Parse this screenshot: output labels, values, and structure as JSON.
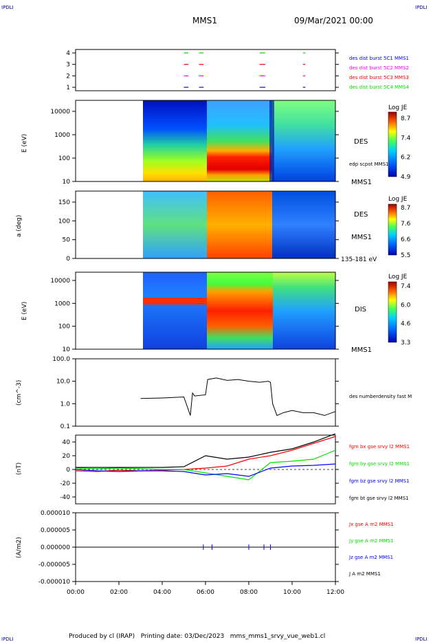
{
  "header": {
    "corner_tl": "IPDLI",
    "corner_tr": "IPDLI",
    "corner_bl": "IPDLI",
    "corner_br": "IPDLI",
    "mission": "MMS1",
    "datetime": "09/Mar/2021 00:00"
  },
  "footer": {
    "text": "Produced by cl (IRAP)   Printing date: 03/Dec/2023   mms_mms1_srvy_vue_web1.cl"
  },
  "colors": {
    "red": "#ff0000",
    "green": "#00e000",
    "blue": "#0000ff",
    "magenta": "#ff00ff",
    "black": "#000000"
  },
  "chart_data": [
    {
      "type": "scatter",
      "name": "burst",
      "yticks": [
        "4",
        "3",
        "2",
        "1"
      ],
      "xlim": [
        "00:00",
        "12:00"
      ],
      "series": [
        {
          "name": "des dist burst 5C1 MMS1",
          "color": "#0000ff",
          "y": 1
        },
        {
          "name": "des dist burst 5C2 MMS2",
          "color": "#ff00ff",
          "y": 2
        },
        {
          "name": "des dist burst 5C3 MMS3",
          "color": "#ff0000",
          "y": 3
        },
        {
          "name": "des dist burst 5C4 MMS4",
          "color": "#00e000",
          "y": 4
        }
      ],
      "intervals_hours": [
        [
          5.0,
          5.15
        ],
        [
          5.7,
          5.85
        ],
        [
          8.5,
          8.7
        ],
        [
          10.5,
          10.55
        ]
      ]
    },
    {
      "type": "heatmap",
      "name": "des-energy",
      "ylabel": "E (eV)",
      "yticks": [
        "10000",
        "1000",
        "100",
        "10"
      ],
      "label": "DES",
      "label2": "edp scpot MMS1",
      "label3": "MMS1",
      "colorbar": {
        "title": "Log JE",
        "ticks": [
          "8.7",
          "7.4",
          "6.2",
          "4.9"
        ]
      }
    },
    {
      "type": "heatmap",
      "name": "des-pitch",
      "ylabel": "a (deg)",
      "yticks": [
        "150",
        "100",
        "50",
        "0"
      ],
      "label": "DES",
      "label2": "MMS1",
      "label3": "135-181 eV",
      "colorbar": {
        "title": "Log JE",
        "ticks": [
          "8.7",
          "7.6",
          "6.6",
          "5.5"
        ]
      }
    },
    {
      "type": "heatmap",
      "name": "dis-energy",
      "ylabel": "E (eV)",
      "yticks": [
        "10000",
        "1000",
        "100",
        "10"
      ],
      "label": "DIS",
      "label2": "MMS1",
      "colorbar": {
        "title": "Log JE",
        "ticks": [
          "7.4",
          "6.0",
          "4.6",
          "3.3"
        ]
      }
    },
    {
      "type": "line",
      "name": "density",
      "ylabel": "(cm^-3)",
      "yticks": [
        "100.0",
        "10.0",
        "1.0",
        "0.1"
      ],
      "ylim": [
        0.1,
        100
      ],
      "log": true,
      "series": [
        {
          "name": "des numberdensity fast M",
          "color": "#000000",
          "x": [
            3.0,
            4.0,
            5.0,
            5.3,
            5.4,
            5.5,
            6.0,
            6.1,
            6.5,
            7.0,
            7.5,
            8.0,
            8.5,
            8.9,
            9.0,
            9.1,
            9.3,
            9.6,
            10.0,
            10.5,
            11.0,
            11.5,
            12.0
          ],
          "y": [
            1.7,
            1.8,
            2.0,
            0.3,
            3.0,
            2.2,
            2.5,
            12.0,
            14.0,
            11.0,
            12.0,
            10.0,
            9.0,
            10.0,
            9.0,
            1.0,
            0.3,
            0.4,
            0.5,
            0.4,
            0.4,
            0.3,
            0.45
          ]
        }
      ]
    },
    {
      "type": "line",
      "name": "fgm",
      "ylabel": "(nT)",
      "yticks": [
        "40",
        "20",
        "0",
        "-20",
        "-40"
      ],
      "ylim": [
        -50,
        50
      ],
      "series": [
        {
          "name": "fgm bx gse srvy l2 MMS1",
          "color": "#ff0000",
          "x": [
            0,
            1,
            2,
            3,
            4,
            5,
            6,
            7,
            8,
            9,
            10,
            11,
            12
          ],
          "y": [
            -2,
            -3,
            -1,
            -2,
            -1,
            0,
            2,
            5,
            15,
            20,
            28,
            38,
            48
          ]
        },
        {
          "name": "fgm by gse srvy l2 MMS1",
          "color": "#00e000",
          "x": [
            0,
            1,
            2,
            3,
            4,
            5,
            6,
            7,
            8,
            9,
            10,
            11,
            12
          ],
          "y": [
            2,
            1,
            2,
            1,
            0,
            0,
            -5,
            -10,
            -15,
            10,
            12,
            15,
            28
          ]
        },
        {
          "name": "fgm bz gse srvy l2 MMS1",
          "color": "#0000ff",
          "x": [
            0,
            1,
            2,
            3,
            4,
            5,
            6,
            7,
            8,
            9,
            10,
            11,
            12
          ],
          "y": [
            0,
            -2,
            -3,
            -2,
            -2,
            -3,
            -8,
            -6,
            -10,
            2,
            5,
            6,
            8
          ]
        },
        {
          "name": "fgm bt gse srvy l2 MMS1",
          "color": "#000000",
          "x": [
            0,
            1,
            2,
            3,
            4,
            5,
            6,
            7,
            8,
            9,
            10,
            11,
            12
          ],
          "y": [
            3,
            3,
            3,
            3,
            3,
            4,
            20,
            15,
            18,
            25,
            30,
            40,
            52
          ]
        }
      ]
    },
    {
      "type": "line",
      "name": "current",
      "ylabel": "(A/m2)",
      "yticks": [
        "0.000010",
        "0.000005",
        "0.000000",
        "-0.000005",
        "-0.000010"
      ],
      "ylim": [
        -1e-05,
        1e-05
      ],
      "series": [
        {
          "name": "Jx gse A m2 MMS1",
          "color": "#ff0000"
        },
        {
          "name": "Jy gse A m2 MMS1",
          "color": "#00e000"
        },
        {
          "name": "Jz gse A m2 MMS1",
          "color": "#0000ff"
        },
        {
          "name": "J A m2 MMS1",
          "color": "#000000"
        }
      ]
    }
  ],
  "xaxis": {
    "ticks": [
      "00:00",
      "02:00",
      "04:00",
      "06:00",
      "08:00",
      "10:00",
      "12:00"
    ]
  }
}
